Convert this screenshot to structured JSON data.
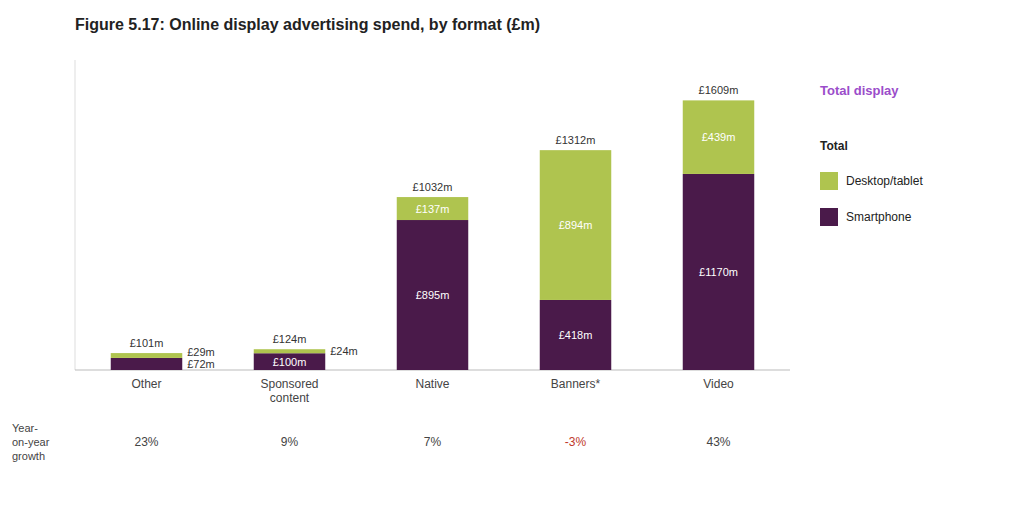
{
  "chart_data": {
    "type": "bar",
    "stacked": true,
    "title": "Figure 5.17: Online display advertising spend, by format (£m)",
    "categories": [
      "Other",
      "Sponsored\ncontent",
      "Native",
      "Banners*",
      "Video"
    ],
    "series": [
      {
        "name": "Smartphone",
        "color": "#4a1a4a",
        "values": [
          72,
          100,
          895,
          418,
          1170
        ],
        "value_labels": [
          "£72m",
          "£100m",
          "£895m",
          "£418m",
          "£1170m"
        ]
      },
      {
        "name": "Desktop/tablet",
        "color": "#afc44f",
        "values": [
          29,
          24,
          137,
          894,
          439
        ],
        "value_labels": [
          "£29m",
          "£24m",
          "£137m",
          "£894m",
          "£439m"
        ]
      }
    ],
    "data_labels": true,
    "totals": [
      101,
      124,
      1032,
      1312,
      1609
    ],
    "total_labels": [
      "£101m",
      "£124m",
      "£1032m",
      "£1312m",
      "£1609m"
    ],
    "yoy_label": "Year-\non-year\ngrowth",
    "yoy_growth": [
      23,
      9,
      7,
      -3,
      43
    ],
    "yoy_growth_labels": [
      "23%",
      "9%",
      "7%",
      "-3%",
      "43%"
    ],
    "legend": "right",
    "legend_title": "Total display",
    "legend_title_color": "#9b4dca",
    "legend_subtitle": "Total",
    "ylim": [
      0,
      1850
    ],
    "tick_labels": "x",
    "grid": false
  }
}
